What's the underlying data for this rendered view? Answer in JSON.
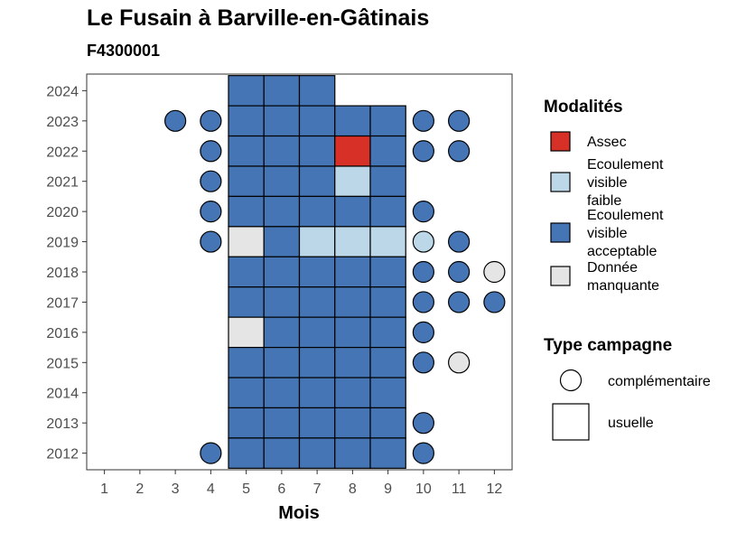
{
  "chart_data": {
    "type": "heatmap",
    "title": "Le Fusain à Barville-en-Gâtinais",
    "subtitle": "F4300001",
    "xlabel": "Mois",
    "ylabel": "",
    "x_ticks": [
      1,
      2,
      3,
      4,
      5,
      6,
      7,
      8,
      9,
      10,
      11,
      12
    ],
    "y_ticks": [
      2012,
      2013,
      2014,
      2015,
      2016,
      2017,
      2018,
      2019,
      2020,
      2021,
      2022,
      2023,
      2024
    ],
    "xlim": [
      0.5,
      12.5
    ],
    "ylim": [
      2011.45,
      2024.55
    ],
    "grid": false,
    "legend_placement": "right",
    "legend_modalites": {
      "title": "Modalités",
      "items": [
        {
          "key": "assec",
          "lines": [
            "Assec"
          ],
          "color": "#d73027"
        },
        {
          "key": "faible",
          "lines": [
            "Ecoulement",
            "visible",
            "faible"
          ],
          "color": "#bcd8e8"
        },
        {
          "key": "acceptable",
          "lines": [
            "Ecoulement",
            "visible",
            "acceptable"
          ],
          "color": "#4575b4"
        },
        {
          "key": "manquante",
          "lines": [
            "Donnée",
            "manquante"
          ],
          "color": "#e5e5e5"
        }
      ]
    },
    "legend_campagne": {
      "title": "Type campagne",
      "items": [
        {
          "key": "complementaire",
          "label": "complémentaire",
          "shape": "circle"
        },
        {
          "key": "usuelle",
          "label": "usuelle",
          "shape": "square"
        }
      ]
    },
    "points": [
      {
        "year": 2024,
        "month": 5,
        "status": "acceptable",
        "campaign": "usuelle"
      },
      {
        "year": 2024,
        "month": 6,
        "status": "acceptable",
        "campaign": "usuelle"
      },
      {
        "year": 2024,
        "month": 7,
        "status": "acceptable",
        "campaign": "usuelle"
      },
      {
        "year": 2023,
        "month": 3,
        "status": "acceptable",
        "campaign": "complementaire"
      },
      {
        "year": 2023,
        "month": 4,
        "status": "acceptable",
        "campaign": "complementaire"
      },
      {
        "year": 2023,
        "month": 5,
        "status": "acceptable",
        "campaign": "usuelle"
      },
      {
        "year": 2023,
        "month": 6,
        "status": "acceptable",
        "campaign": "usuelle"
      },
      {
        "year": 2023,
        "month": 7,
        "status": "acceptable",
        "campaign": "usuelle"
      },
      {
        "year": 2023,
        "month": 8,
        "status": "acceptable",
        "campaign": "usuelle"
      },
      {
        "year": 2023,
        "month": 9,
        "status": "acceptable",
        "campaign": "usuelle"
      },
      {
        "year": 2023,
        "month": 10,
        "status": "acceptable",
        "campaign": "complementaire"
      },
      {
        "year": 2023,
        "month": 11,
        "status": "acceptable",
        "campaign": "complementaire"
      },
      {
        "year": 2022,
        "month": 4,
        "status": "acceptable",
        "campaign": "complementaire"
      },
      {
        "year": 2022,
        "month": 5,
        "status": "acceptable",
        "campaign": "usuelle"
      },
      {
        "year": 2022,
        "month": 6,
        "status": "acceptable",
        "campaign": "usuelle"
      },
      {
        "year": 2022,
        "month": 7,
        "status": "acceptable",
        "campaign": "usuelle"
      },
      {
        "year": 2022,
        "month": 8,
        "status": "assec",
        "campaign": "usuelle"
      },
      {
        "year": 2022,
        "month": 9,
        "status": "acceptable",
        "campaign": "usuelle"
      },
      {
        "year": 2022,
        "month": 10,
        "status": "acceptable",
        "campaign": "complementaire"
      },
      {
        "year": 2022,
        "month": 11,
        "status": "acceptable",
        "campaign": "complementaire"
      },
      {
        "year": 2021,
        "month": 4,
        "status": "acceptable",
        "campaign": "complementaire"
      },
      {
        "year": 2021,
        "month": 5,
        "status": "acceptable",
        "campaign": "usuelle"
      },
      {
        "year": 2021,
        "month": 6,
        "status": "acceptable",
        "campaign": "usuelle"
      },
      {
        "year": 2021,
        "month": 7,
        "status": "acceptable",
        "campaign": "usuelle"
      },
      {
        "year": 2021,
        "month": 8,
        "status": "faible",
        "campaign": "usuelle"
      },
      {
        "year": 2021,
        "month": 9,
        "status": "acceptable",
        "campaign": "usuelle"
      },
      {
        "year": 2020,
        "month": 4,
        "status": "acceptable",
        "campaign": "complementaire"
      },
      {
        "year": 2020,
        "month": 5,
        "status": "acceptable",
        "campaign": "usuelle"
      },
      {
        "year": 2020,
        "month": 6,
        "status": "acceptable",
        "campaign": "usuelle"
      },
      {
        "year": 2020,
        "month": 7,
        "status": "acceptable",
        "campaign": "usuelle"
      },
      {
        "year": 2020,
        "month": 8,
        "status": "acceptable",
        "campaign": "usuelle"
      },
      {
        "year": 2020,
        "month": 9,
        "status": "acceptable",
        "campaign": "usuelle"
      },
      {
        "year": 2020,
        "month": 10,
        "status": "acceptable",
        "campaign": "complementaire"
      },
      {
        "year": 2019,
        "month": 4,
        "status": "acceptable",
        "campaign": "complementaire"
      },
      {
        "year": 2019,
        "month": 5,
        "status": "manquante",
        "campaign": "usuelle"
      },
      {
        "year": 2019,
        "month": 6,
        "status": "acceptable",
        "campaign": "usuelle"
      },
      {
        "year": 2019,
        "month": 7,
        "status": "faible",
        "campaign": "usuelle"
      },
      {
        "year": 2019,
        "month": 8,
        "status": "faible",
        "campaign": "usuelle"
      },
      {
        "year": 2019,
        "month": 9,
        "status": "faible",
        "campaign": "usuelle"
      },
      {
        "year": 2019,
        "month": 10,
        "status": "faible",
        "campaign": "complementaire"
      },
      {
        "year": 2019,
        "month": 11,
        "status": "acceptable",
        "campaign": "complementaire"
      },
      {
        "year": 2018,
        "month": 5,
        "status": "acceptable",
        "campaign": "usuelle"
      },
      {
        "year": 2018,
        "month": 6,
        "status": "acceptable",
        "campaign": "usuelle"
      },
      {
        "year": 2018,
        "month": 7,
        "status": "acceptable",
        "campaign": "usuelle"
      },
      {
        "year": 2018,
        "month": 8,
        "status": "acceptable",
        "campaign": "usuelle"
      },
      {
        "year": 2018,
        "month": 9,
        "status": "acceptable",
        "campaign": "usuelle"
      },
      {
        "year": 2018,
        "month": 10,
        "status": "acceptable",
        "campaign": "complementaire"
      },
      {
        "year": 2018,
        "month": 11,
        "status": "acceptable",
        "campaign": "complementaire"
      },
      {
        "year": 2018,
        "month": 12,
        "status": "manquante",
        "campaign": "complementaire"
      },
      {
        "year": 2017,
        "month": 5,
        "status": "acceptable",
        "campaign": "usuelle"
      },
      {
        "year": 2017,
        "month": 6,
        "status": "acceptable",
        "campaign": "usuelle"
      },
      {
        "year": 2017,
        "month": 7,
        "status": "acceptable",
        "campaign": "usuelle"
      },
      {
        "year": 2017,
        "month": 8,
        "status": "acceptable",
        "campaign": "usuelle"
      },
      {
        "year": 2017,
        "month": 9,
        "status": "acceptable",
        "campaign": "usuelle"
      },
      {
        "year": 2017,
        "month": 10,
        "status": "acceptable",
        "campaign": "complementaire"
      },
      {
        "year": 2017,
        "month": 11,
        "status": "acceptable",
        "campaign": "complementaire"
      },
      {
        "year": 2017,
        "month": 12,
        "status": "acceptable",
        "campaign": "complementaire"
      },
      {
        "year": 2016,
        "month": 5,
        "status": "manquante",
        "campaign": "usuelle"
      },
      {
        "year": 2016,
        "month": 6,
        "status": "acceptable",
        "campaign": "usuelle"
      },
      {
        "year": 2016,
        "month": 7,
        "status": "acceptable",
        "campaign": "usuelle"
      },
      {
        "year": 2016,
        "month": 8,
        "status": "acceptable",
        "campaign": "usuelle"
      },
      {
        "year": 2016,
        "month": 9,
        "status": "acceptable",
        "campaign": "usuelle"
      },
      {
        "year": 2016,
        "month": 10,
        "status": "acceptable",
        "campaign": "complementaire"
      },
      {
        "year": 2015,
        "month": 5,
        "status": "acceptable",
        "campaign": "usuelle"
      },
      {
        "year": 2015,
        "month": 6,
        "status": "acceptable",
        "campaign": "usuelle"
      },
      {
        "year": 2015,
        "month": 7,
        "status": "acceptable",
        "campaign": "usuelle"
      },
      {
        "year": 2015,
        "month": 8,
        "status": "acceptable",
        "campaign": "usuelle"
      },
      {
        "year": 2015,
        "month": 9,
        "status": "acceptable",
        "campaign": "usuelle"
      },
      {
        "year": 2015,
        "month": 10,
        "status": "acceptable",
        "campaign": "complementaire"
      },
      {
        "year": 2015,
        "month": 11,
        "status": "manquante",
        "campaign": "complementaire"
      },
      {
        "year": 2014,
        "month": 5,
        "status": "acceptable",
        "campaign": "usuelle"
      },
      {
        "year": 2014,
        "month": 6,
        "status": "acceptable",
        "campaign": "usuelle"
      },
      {
        "year": 2014,
        "month": 7,
        "status": "acceptable",
        "campaign": "usuelle"
      },
      {
        "year": 2014,
        "month": 8,
        "status": "acceptable",
        "campaign": "usuelle"
      },
      {
        "year": 2014,
        "month": 9,
        "status": "acceptable",
        "campaign": "usuelle"
      },
      {
        "year": 2013,
        "month": 5,
        "status": "acceptable",
        "campaign": "usuelle"
      },
      {
        "year": 2013,
        "month": 6,
        "status": "acceptable",
        "campaign": "usuelle"
      },
      {
        "year": 2013,
        "month": 7,
        "status": "acceptable",
        "campaign": "usuelle"
      },
      {
        "year": 2013,
        "month": 8,
        "status": "acceptable",
        "campaign": "usuelle"
      },
      {
        "year": 2013,
        "month": 9,
        "status": "acceptable",
        "campaign": "usuelle"
      },
      {
        "year": 2013,
        "month": 10,
        "status": "acceptable",
        "campaign": "complementaire"
      },
      {
        "year": 2012,
        "month": 4,
        "status": "acceptable",
        "campaign": "complementaire"
      },
      {
        "year": 2012,
        "month": 5,
        "status": "acceptable",
        "campaign": "usuelle"
      },
      {
        "year": 2012,
        "month": 6,
        "status": "acceptable",
        "campaign": "usuelle"
      },
      {
        "year": 2012,
        "month": 7,
        "status": "acceptable",
        "campaign": "usuelle"
      },
      {
        "year": 2012,
        "month": 8,
        "status": "acceptable",
        "campaign": "usuelle"
      },
      {
        "year": 2012,
        "month": 9,
        "status": "acceptable",
        "campaign": "usuelle"
      },
      {
        "year": 2012,
        "month": 10,
        "status": "acceptable",
        "campaign": "complementaire"
      }
    ]
  }
}
